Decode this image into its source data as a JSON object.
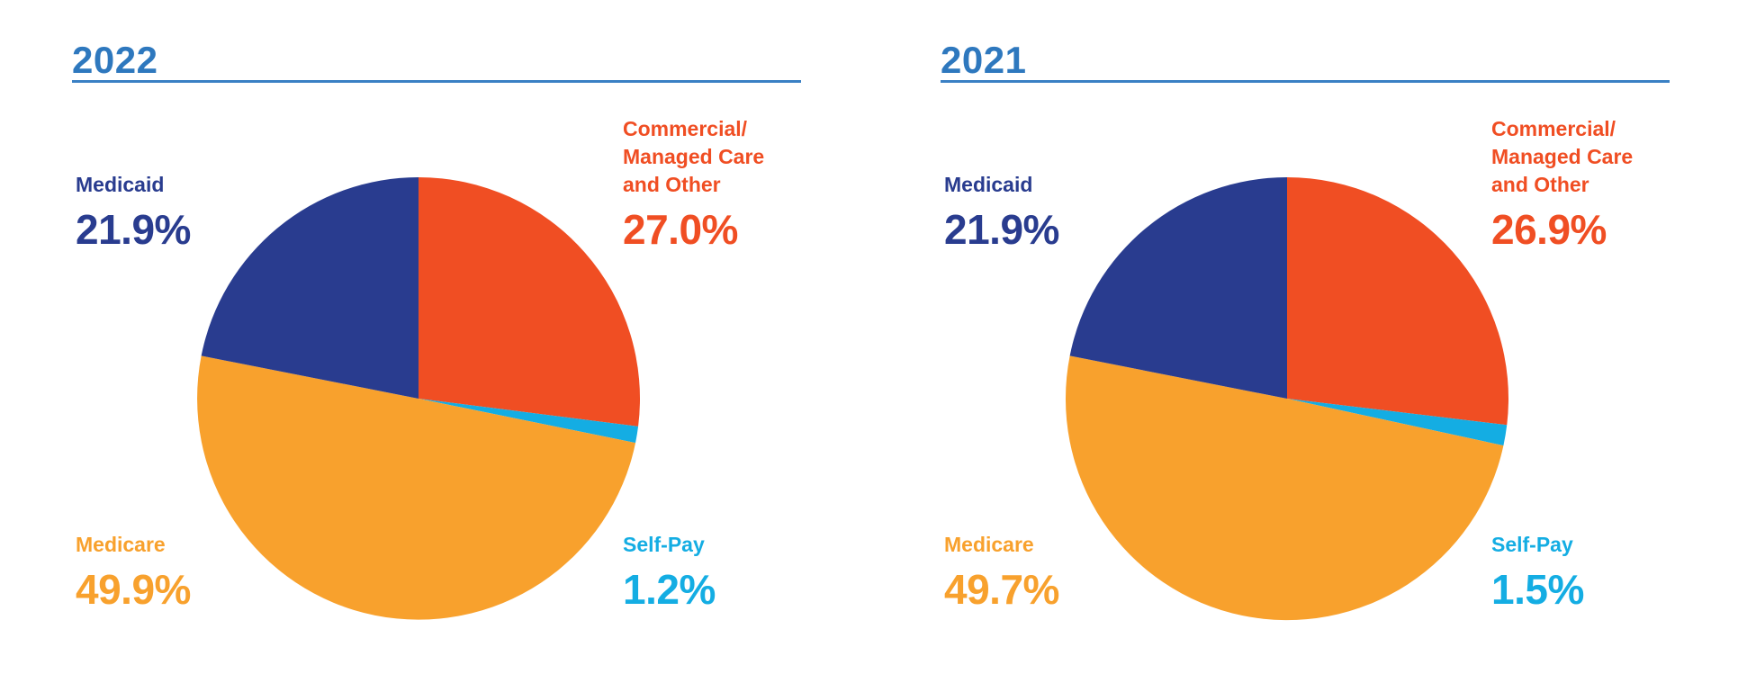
{
  "style": {
    "background": "#FFFFFF",
    "title_color": "#2E78BE",
    "rule_color": "#3A80C4"
  },
  "chart_data": [
    {
      "type": "pie",
      "title": "2022",
      "direction": "clockwise",
      "start_angle_deg": 0,
      "legend_position": "corner-labels",
      "slices": [
        {
          "name": "Commercial/Managed Care and Other",
          "label_lines": [
            "Commercial/",
            "Managed Care",
            "and Other"
          ],
          "value_pct": 27.0,
          "value_label": "27.0%",
          "color": "#F04E23",
          "label_position": "top-right"
        },
        {
          "name": "Self-Pay",
          "label_lines": [
            "Self-Pay"
          ],
          "value_pct": 1.2,
          "value_label": "1.2%",
          "color": "#14ADE3",
          "label_position": "bottom-right"
        },
        {
          "name": "Medicare",
          "label_lines": [
            "Medicare"
          ],
          "value_pct": 49.9,
          "value_label": "49.9%",
          "color": "#F8A12D",
          "label_position": "bottom-left"
        },
        {
          "name": "Medicaid",
          "label_lines": [
            "Medicaid"
          ],
          "value_pct": 21.9,
          "value_label": "21.9%",
          "color": "#293C8F",
          "label_position": "top-left"
        }
      ]
    },
    {
      "type": "pie",
      "title": "2021",
      "direction": "clockwise",
      "start_angle_deg": 0,
      "legend_position": "corner-labels",
      "slices": [
        {
          "name": "Commercial/Managed Care and Other",
          "label_lines": [
            "Commercial/",
            "Managed Care",
            "and Other"
          ],
          "value_pct": 26.9,
          "value_label": "26.9%",
          "color": "#F04E23",
          "label_position": "top-right"
        },
        {
          "name": "Self-Pay",
          "label_lines": [
            "Self-Pay"
          ],
          "value_pct": 1.5,
          "value_label": "1.5%",
          "color": "#14ADE3",
          "label_position": "bottom-right"
        },
        {
          "name": "Medicare",
          "label_lines": [
            "Medicare"
          ],
          "value_pct": 49.7,
          "value_label": "49.7%",
          "color": "#F8A12D",
          "label_position": "bottom-left"
        },
        {
          "name": "Medicaid",
          "label_lines": [
            "Medicaid"
          ],
          "value_pct": 21.9,
          "value_label": "21.9%",
          "color": "#293C8F",
          "label_position": "top-left"
        }
      ]
    }
  ]
}
